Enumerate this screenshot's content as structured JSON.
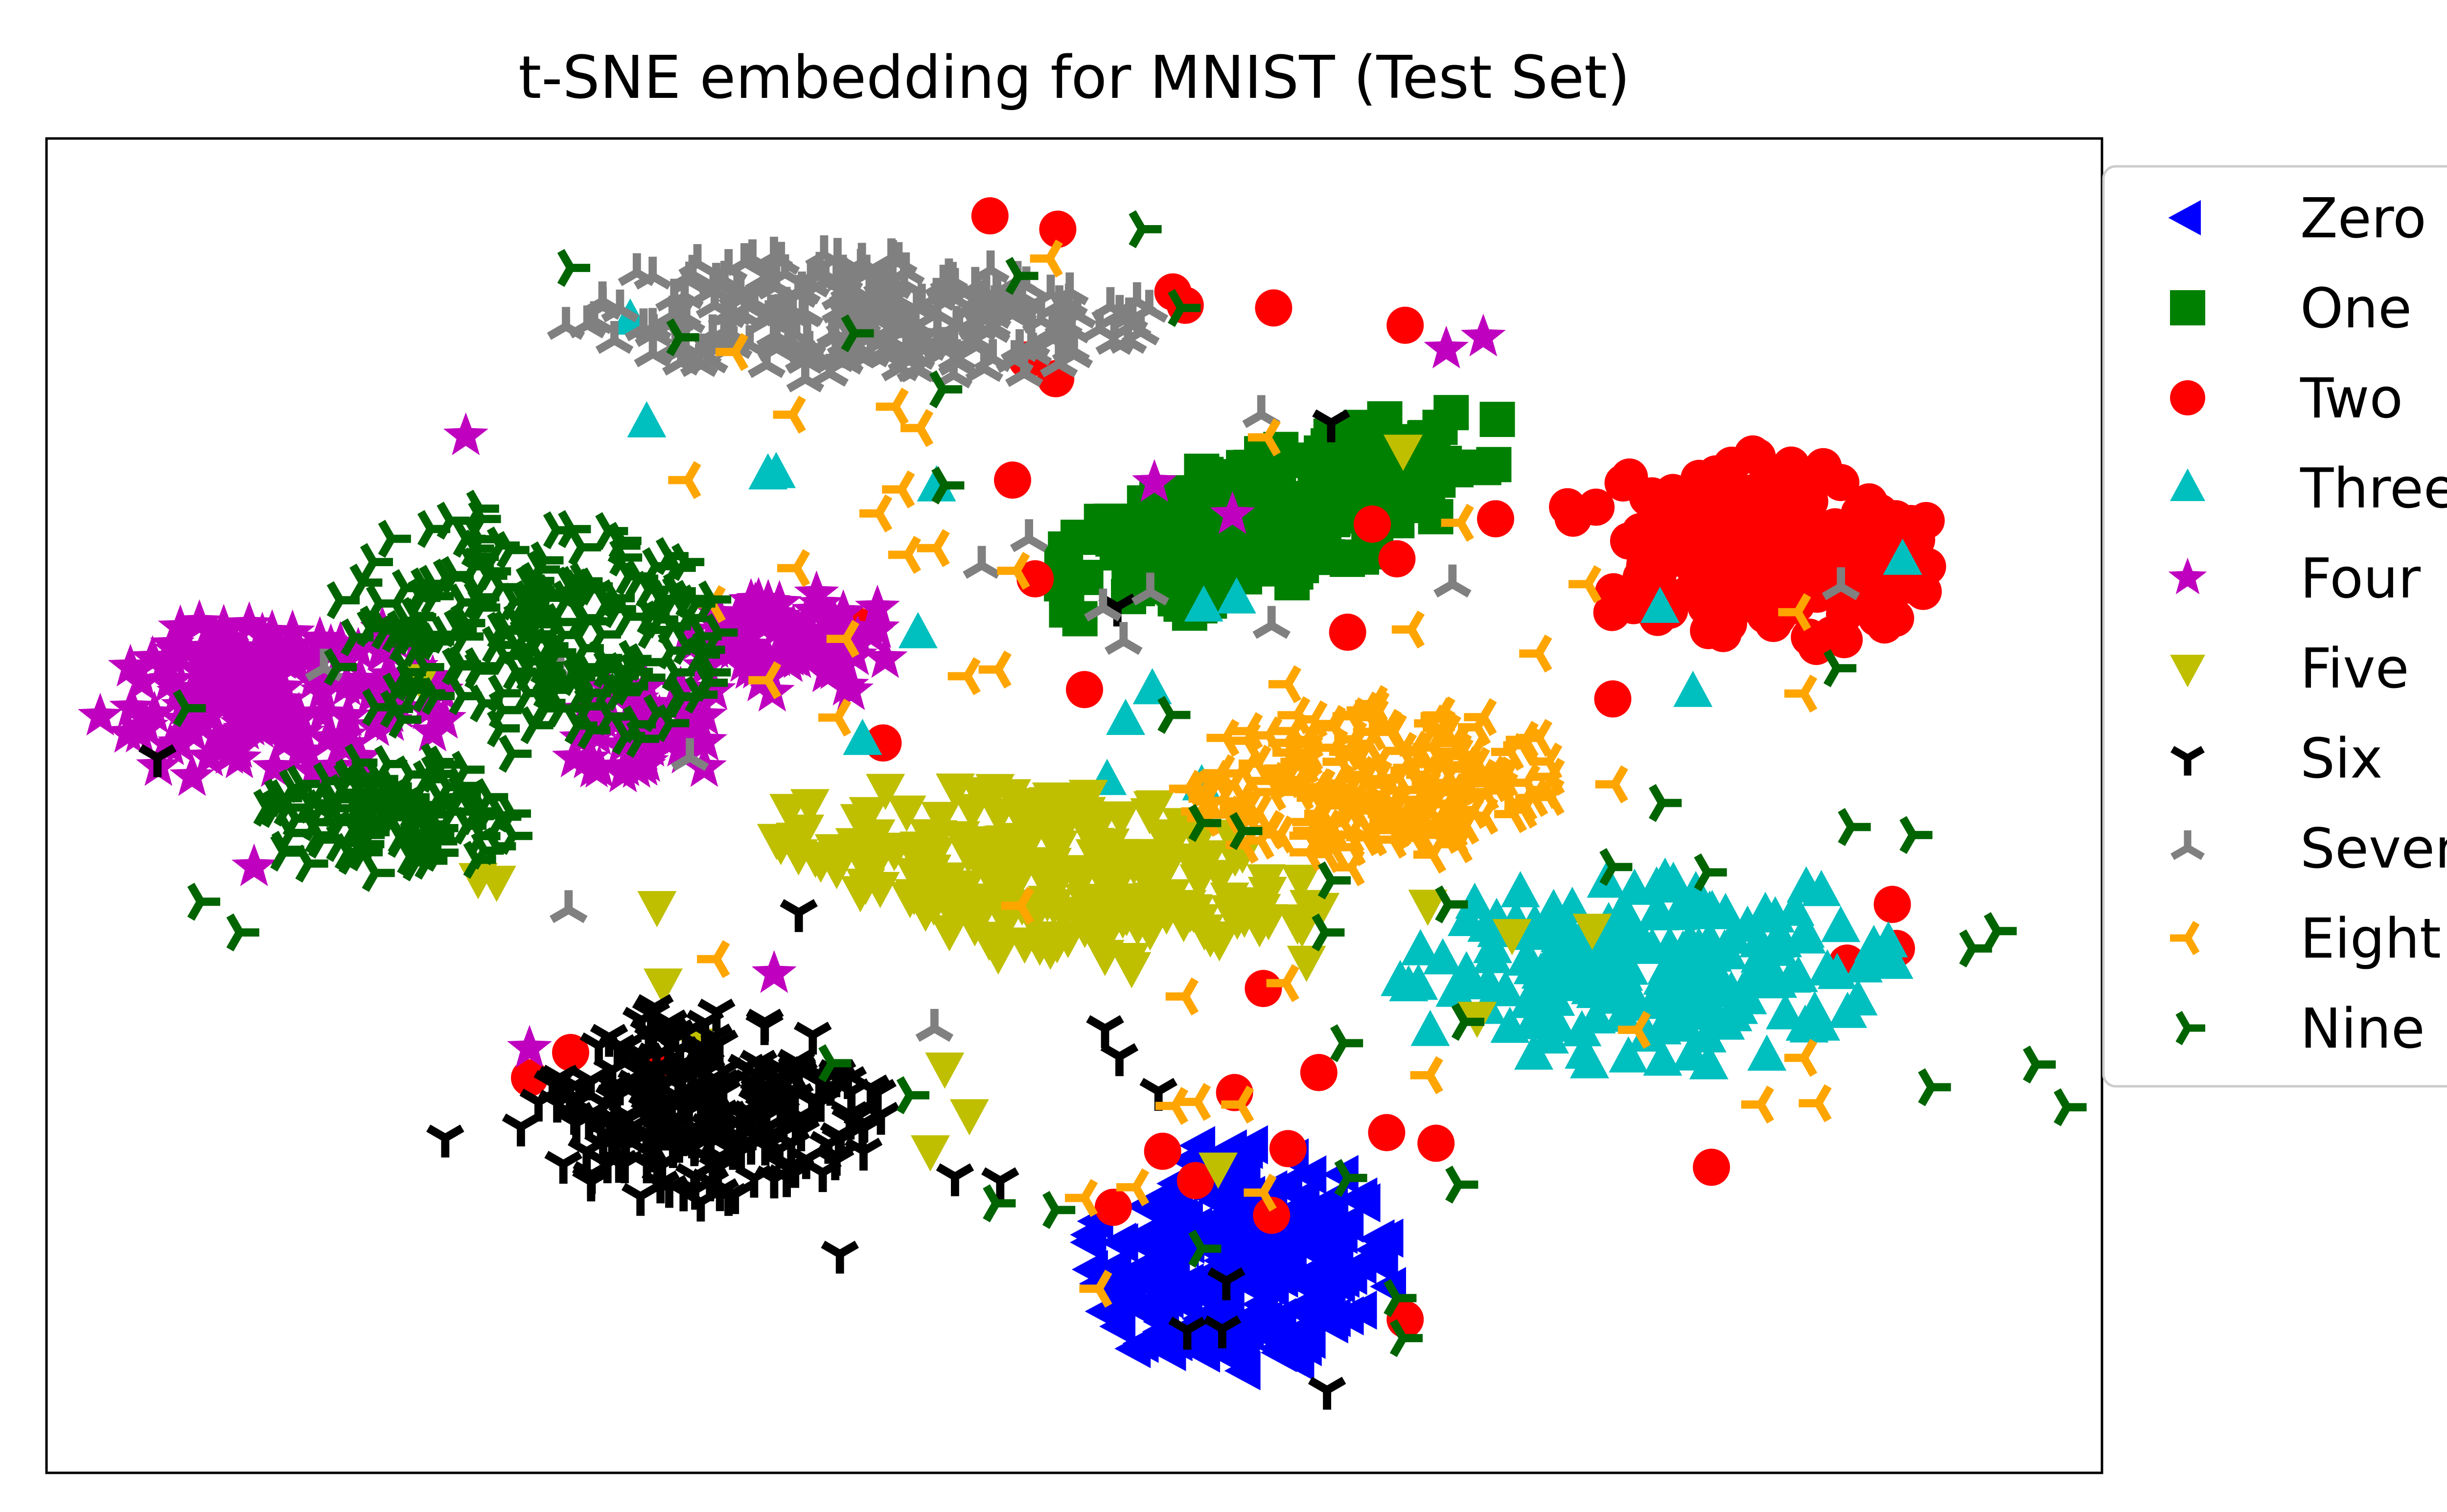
{
  "chart_data": {
    "type": "scatter",
    "title": "t-SNE embedding for MNIST (Test Set)",
    "xlabel": "",
    "ylabel": "",
    "xlim": [
      0,
      100
    ],
    "ylim": [
      0,
      100
    ],
    "grid": false,
    "ticks": false,
    "legend_placement": "outside-right",
    "series": [
      {
        "name": "Zero",
        "marker": "triangle-left",
        "color": "#0000ff",
        "clusters": [
          {
            "cx": 58,
            "cy": 16,
            "rx": 7.5,
            "ry": 9,
            "n": 240,
            "angle": 0
          }
        ]
      },
      {
        "name": "One",
        "marker": "square",
        "color": "#008000",
        "clusters": [
          {
            "cx": 59.5,
            "cy": 71.5,
            "rx": 13.5,
            "ry": 5,
            "n": 230,
            "angle": 31
          }
        ]
      },
      {
        "name": "Two",
        "marker": "circle",
        "color": "#ff0000",
        "clusters": [
          {
            "cx": 83,
            "cy": 69,
            "rx": 9,
            "ry": 7.5,
            "n": 200,
            "angle": -8
          }
        ],
        "scattered": [
          [
            45.9,
            94.2
          ],
          [
            49.2,
            93.2
          ],
          [
            54.8,
            88.5
          ],
          [
            47.7,
            83.4
          ],
          [
            49.1,
            82
          ],
          [
            55.4,
            87.5
          ],
          [
            59.7,
            87.3
          ],
          [
            66.1,
            86
          ],
          [
            64.5,
            71.1
          ],
          [
            63.3,
            63
          ],
          [
            50.5,
            58.7
          ],
          [
            47,
            74.4
          ],
          [
            48.1,
            67
          ],
          [
            40.7,
            54.7
          ],
          [
            39.4,
            63.5
          ],
          [
            65.7,
            68.5
          ],
          [
            74,
            72.4
          ],
          [
            76.2,
            58
          ],
          [
            59.2,
            36.3
          ],
          [
            57.8,
            28.5
          ],
          [
            60.4,
            24.3
          ],
          [
            54.3,
            24.1
          ],
          [
            51.9,
            19.9
          ],
          [
            59.6,
            19.3
          ],
          [
            55.9,
            21.9
          ],
          [
            61.9,
            30
          ],
          [
            65.2,
            25.5
          ],
          [
            67.6,
            24.7
          ],
          [
            66.1,
            11.5
          ],
          [
            89.8,
            42.6
          ],
          [
            87.6,
            38.2
          ],
          [
            90,
            39.3
          ],
          [
            81,
            22.9
          ],
          [
            23.5,
            29.6
          ],
          [
            25.5,
            31.5
          ],
          [
            29.4,
            30.6
          ],
          [
            70.5,
            71.5
          ]
        ]
      },
      {
        "name": "Three",
        "marker": "triangle-up",
        "color": "#00bfbf",
        "clusters": [
          {
            "cx": 78,
            "cy": 37.5,
            "rx": 12.5,
            "ry": 7.5,
            "n": 190,
            "angle": 4
          }
        ],
        "scattered": [
          [
            28.4,
            86.4
          ],
          [
            29.2,
            78.7
          ],
          [
            35.1,
            74.8
          ],
          [
            43.3,
            73.9
          ],
          [
            57.9,
            65.5
          ],
          [
            56.3,
            64.9
          ],
          [
            53.8,
            58.7
          ],
          [
            52.5,
            56.4
          ],
          [
            51.6,
            51.9
          ],
          [
            39.7,
            54.9
          ],
          [
            56.2,
            51.5
          ],
          [
            78.5,
            64.8
          ],
          [
            80.1,
            58.5
          ],
          [
            90.3,
            68.4
          ],
          [
            42.4,
            62.9
          ],
          [
            35.5,
            74.9
          ]
        ]
      },
      {
        "name": "Four",
        "marker": "star",
        "color": "#bf00bf",
        "clusters": [
          {
            "cx": 11,
            "cy": 58,
            "rx": 8.5,
            "ry": 6.5,
            "n": 150,
            "angle": 0
          },
          {
            "cx": 36,
            "cy": 62,
            "rx": 5.5,
            "ry": 4.5,
            "n": 80,
            "angle": 0
          },
          {
            "cx": 29,
            "cy": 55.5,
            "rx": 4,
            "ry": 4,
            "n": 50,
            "angle": 0
          }
        ],
        "scattered": [
          [
            20.4,
            77.7
          ],
          [
            10.1,
            45.4
          ],
          [
            35.4,
            37.4
          ],
          [
            23.5,
            31.8
          ],
          [
            68.1,
            84.2
          ],
          [
            69.9,
            85.1
          ],
          [
            53.9,
            74.2
          ],
          [
            57.7,
            71.8
          ]
        ]
      },
      {
        "name": "Five",
        "marker": "triangle-down",
        "color": "#bfbf00",
        "clusters": [
          {
            "cx": 48.5,
            "cy": 45,
            "rx": 13.5,
            "ry": 6.5,
            "n": 230,
            "angle": -12
          }
        ],
        "scattered": [
          [
            18.2,
            59.5
          ],
          [
            21,
            44.6
          ],
          [
            21.9,
            44.4
          ],
          [
            29.7,
            42.5
          ],
          [
            30,
            36.7
          ],
          [
            31.5,
            32.2
          ],
          [
            43.7,
            30.4
          ],
          [
            43,
            24.2
          ],
          [
            44.9,
            26.9
          ],
          [
            57,
            22.9
          ],
          [
            61.3,
            38.4
          ],
          [
            67.2,
            42.6
          ],
          [
            69.6,
            34.2
          ],
          [
            71.3,
            40.4
          ],
          [
            66,
            76.7
          ],
          [
            75.2,
            40.8
          ]
        ]
      },
      {
        "name": "Six",
        "marker": "tri-down",
        "color": "#000000",
        "clusters": [
          {
            "cx": 32,
            "cy": 27.5,
            "rx": 9,
            "ry": 7.5,
            "n": 230,
            "angle": 0
          }
        ],
        "scattered": [
          [
            5.4,
            53.6
          ],
          [
            19.4,
            25.1
          ],
          [
            36.6,
            42
          ],
          [
            44.2,
            22.2
          ],
          [
            46.4,
            21.9
          ],
          [
            38.6,
            16.4
          ],
          [
            52.1,
            64.9
          ],
          [
            51.5,
            33.3
          ],
          [
            52.2,
            31.2
          ],
          [
            54.1,
            28.6
          ],
          [
            57.4,
            14.4
          ],
          [
            57.2,
            10.8
          ],
          [
            62.3,
            6.2
          ],
          [
            55.5,
            10.7
          ],
          [
            62.5,
            78.7
          ]
        ]
      },
      {
        "name": "Seven",
        "marker": "tri-up",
        "color": "#808080",
        "clusters": [
          {
            "cx": 39,
            "cy": 86.5,
            "rx": 14.5,
            "ry": 5,
            "n": 230,
            "angle": 0
          }
        ],
        "scattered": [
          [
            13.5,
            60.3
          ],
          [
            25,
            60
          ],
          [
            31.3,
            53.6
          ],
          [
            25.4,
            42.2
          ],
          [
            43.2,
            33.3
          ],
          [
            53.7,
            66
          ],
          [
            51.4,
            64.8
          ],
          [
            52.4,
            62.3
          ],
          [
            45.5,
            68
          ],
          [
            47.8,
            70
          ],
          [
            59.1,
            79.3
          ],
          [
            59.6,
            63.5
          ],
          [
            68.4,
            66.6
          ],
          [
            87.3,
            66.4
          ]
        ]
      },
      {
        "name": "Eight",
        "marker": "tri-left",
        "color": "#ffa500",
        "clusters": [
          {
            "cx": 64.5,
            "cy": 52,
            "rx": 9,
            "ry": 6.5,
            "n": 200,
            "angle": 8
          }
        ],
        "scattered": [
          [
            31.2,
            74.4
          ],
          [
            32.4,
            65.1
          ],
          [
            36.5,
            67.8
          ],
          [
            35.1,
            59.4
          ],
          [
            38.5,
            56.6
          ],
          [
            38.9,
            62.5
          ],
          [
            41.9,
            68.8
          ],
          [
            43.3,
            69.3
          ],
          [
            40.5,
            71.9
          ],
          [
            41.6,
            73.7
          ],
          [
            47.2,
            67.6
          ],
          [
            46.3,
            60.2
          ],
          [
            44.8,
            59.7
          ],
          [
            32.6,
            38.5
          ],
          [
            47.4,
            42.5
          ],
          [
            55.4,
            35.7
          ],
          [
            60.4,
            59.1
          ],
          [
            66.4,
            63.2
          ],
          [
            68.8,
            71.2
          ],
          [
            75,
            66.6
          ],
          [
            72.6,
            61.4
          ],
          [
            66.6,
            49
          ],
          [
            76.3,
            51.6
          ],
          [
            85.2,
            64.5
          ],
          [
            85.5,
            58.4
          ],
          [
            77.4,
            33.2
          ],
          [
            85.5,
            31.1
          ],
          [
            86.2,
            27.7
          ],
          [
            83.4,
            27.6
          ],
          [
            67.3,
            29.8
          ],
          [
            60.3,
            36.7
          ],
          [
            56,
            27.8
          ],
          [
            54.9,
            27.5
          ],
          [
            58.1,
            27.6
          ],
          [
            53,
            21.4
          ],
          [
            50.5,
            20.6
          ],
          [
            51.2,
            13.8
          ],
          [
            59.2,
            21
          ],
          [
            33.5,
            84
          ],
          [
            36.3,
            79.3
          ],
          [
            41.3,
            79.9
          ],
          [
            42.5,
            78.3
          ],
          [
            48.8,
            91
          ],
          [
            59.4,
            77.6
          ]
        ]
      },
      {
        "name": "Nine",
        "marker": "tri-right",
        "color": "#006400",
        "clusters": [
          {
            "cx": 23.5,
            "cy": 63,
            "rx": 9.5,
            "ry": 9.5,
            "n": 200,
            "angle": 0
          },
          {
            "cx": 17,
            "cy": 49,
            "rx": 6.5,
            "ry": 4.5,
            "n": 110,
            "angle": 0
          }
        ],
        "scattered": [
          [
            25.5,
            90.3
          ],
          [
            30.8,
            85.1
          ],
          [
            39.3,
            85.4
          ],
          [
            47.3,
            89.7
          ],
          [
            53.3,
            93.2
          ],
          [
            55.2,
            87.3
          ],
          [
            43.6,
            81.2
          ],
          [
            43.7,
            74
          ],
          [
            54.7,
            56.8
          ],
          [
            56.2,
            48.7
          ],
          [
            58.2,
            48.1
          ],
          [
            62.5,
            44.4
          ],
          [
            62.2,
            40.5
          ],
          [
            63.1,
            32.2
          ],
          [
            63.3,
            22.1
          ],
          [
            68.2,
            42.6
          ],
          [
            69,
            33.8
          ],
          [
            68.7,
            21.6
          ],
          [
            65.7,
            13.1
          ],
          [
            78.6,
            50.2
          ],
          [
            76.2,
            45.4
          ],
          [
            80.8,
            45
          ],
          [
            87.8,
            48.4
          ],
          [
            90.8,
            47.8
          ],
          [
            91.7,
            28.9
          ],
          [
            93.7,
            39.3
          ],
          [
            94.9,
            40.6
          ],
          [
            96.8,
            30.6
          ],
          [
            98.3,
            27.4
          ],
          [
            87.1,
            60.3
          ],
          [
            103.7,
            71.9
          ],
          [
            104.2,
            57.7
          ],
          [
            109,
            47.8
          ],
          [
            7.5,
            42.8
          ],
          [
            42,
            28.3
          ],
          [
            38.2,
            30.7
          ],
          [
            46.2,
            20.2
          ],
          [
            49.1,
            19.7
          ],
          [
            56.2,
            16.8
          ],
          [
            66,
            10.1
          ],
          [
            6.8,
            57.3
          ],
          [
            9.4,
            40.5
          ]
        ]
      }
    ]
  }
}
